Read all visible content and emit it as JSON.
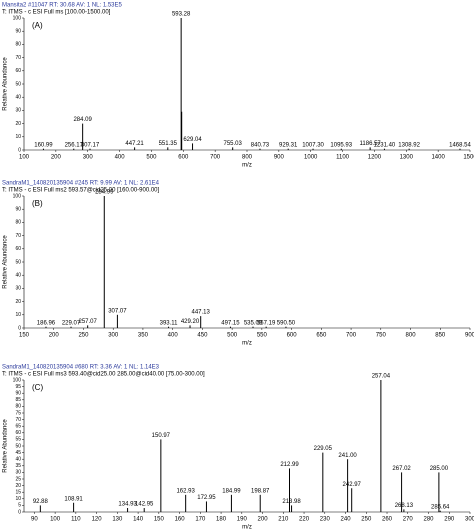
{
  "chart_data": [
    {
      "type": "bar",
      "title": "Mansita2 #11047  RT: 30.68  AV: 1  NL: 1.53E5",
      "subtitle": "T: ITMS - c ESI Full ms [100.00-1500.00]",
      "panel": "(A)",
      "y_label": "Relative Abundance",
      "x_label": "m/z",
      "x": [
        160.99,
        256.17,
        284.09,
        307.17,
        447.21,
        551.35,
        593.28,
        595.0,
        629.04,
        755.03,
        840.73,
        929.31,
        1007.3,
        1095.93,
        1186.57,
        1231.4,
        1308.92,
        1468.54
      ],
      "peak_labels": [
        "160.99",
        "256.17",
        "284.09",
        "307.17",
        "447.21",
        "551.35",
        "593.28",
        null,
        "629.04",
        "755.03",
        "840.73",
        "929.31",
        "1007.30",
        "1095.93",
        "1186.57",
        "1231.40",
        "1308.92",
        "1468.54"
      ],
      "values": [
        1,
        1,
        20,
        1,
        2,
        2,
        100,
        29,
        5,
        2,
        1,
        1,
        1,
        1,
        2,
        1,
        1,
        1
      ],
      "color": "#000000",
      "xlim": [
        100,
        1500
      ],
      "xticks": [
        100,
        200,
        300,
        400,
        500,
        600,
        700,
        800,
        900,
        1000,
        1100,
        1200,
        1300,
        1400,
        1500
      ],
      "ylim": [
        0,
        100
      ],
      "yticks": [
        0,
        10,
        20,
        30,
        40,
        50,
        60,
        70,
        80,
        90,
        100
      ]
    },
    {
      "type": "bar",
      "title": "SandraM1_140820135904 #245  RT: 9.99  AV: 1  NL: 2.61E4",
      "subtitle": "T: ITMS - c ESI Full ms2 593.57@cid25.00 [160.00-900.00]",
      "panel": "(B)",
      "y_label": "Relative Abundance",
      "x_label": "m/z",
      "x": [
        186.96,
        229.07,
        257.07,
        284.99,
        307.07,
        393.11,
        429.2,
        447.13,
        497.15,
        535.09,
        557.19,
        590.5
      ],
      "peak_labels": [
        "186.96",
        "229.07",
        "257.07",
        "284.99",
        "307.07",
        "393.11",
        "429.20",
        "447.13",
        "497.15",
        "535.09",
        "557.19",
        "590.50"
      ],
      "values": [
        1,
        1,
        2,
        100,
        10,
        1,
        2,
        9,
        1,
        1,
        1,
        1
      ],
      "color": "#000000",
      "xlim": [
        150,
        900
      ],
      "xticks": [
        150,
        200,
        250,
        300,
        350,
        400,
        450,
        500,
        550,
        600,
        650,
        700,
        750,
        800,
        850,
        900
      ],
      "ylim": [
        0,
        100
      ],
      "yticks": [
        0,
        10,
        20,
        30,
        40,
        50,
        60,
        70,
        80,
        90,
        100
      ]
    },
    {
      "type": "bar",
      "title": "SandraM1_140820135904 #680  RT: 3.36  AV: 1  NL: 1.14E3",
      "subtitle": "T: ITMS - c ESI Full ms3 593.40@cid25.00 285.00@cid40.00 [75.00-300.00]",
      "panel": "(C)",
      "y_label": "Relative Abundance",
      "x_label": "m/z",
      "x": [
        92.88,
        108.91,
        134.93,
        142.95,
        150.97,
        162.93,
        172.95,
        184.99,
        198.87,
        212.99,
        213.98,
        229.05,
        241.0,
        242.97,
        257.04,
        267.02,
        268.13,
        285.0,
        285.64
      ],
      "peak_labels": [
        "92.88",
        "108.91",
        "134.93",
        "142.95",
        "150.97",
        "162.93",
        "172.95",
        "184.99",
        "198.87",
        "212.99",
        "213.98",
        "229.05",
        "241.00",
        "242.97",
        "257.04",
        "267.02",
        "268.13",
        "285.00",
        "285.64"
      ],
      "values": [
        5,
        7,
        3,
        3,
        55,
        13,
        8,
        13,
        13,
        33,
        5,
        45,
        40,
        18,
        100,
        30,
        2,
        30,
        1
      ],
      "color": "#000000",
      "xlim": [
        85,
        300
      ],
      "xticks": [
        90,
        100,
        110,
        120,
        130,
        140,
        150,
        160,
        170,
        180,
        190,
        200,
        210,
        220,
        230,
        240,
        250,
        260,
        270,
        280,
        290,
        300
      ],
      "ylim": [
        0,
        100
      ],
      "yticks": [
        0,
        5,
        10,
        15,
        20,
        25,
        30,
        35,
        40,
        45,
        50,
        55,
        60,
        65,
        70,
        75,
        80,
        85,
        90,
        95,
        100
      ]
    }
  ]
}
